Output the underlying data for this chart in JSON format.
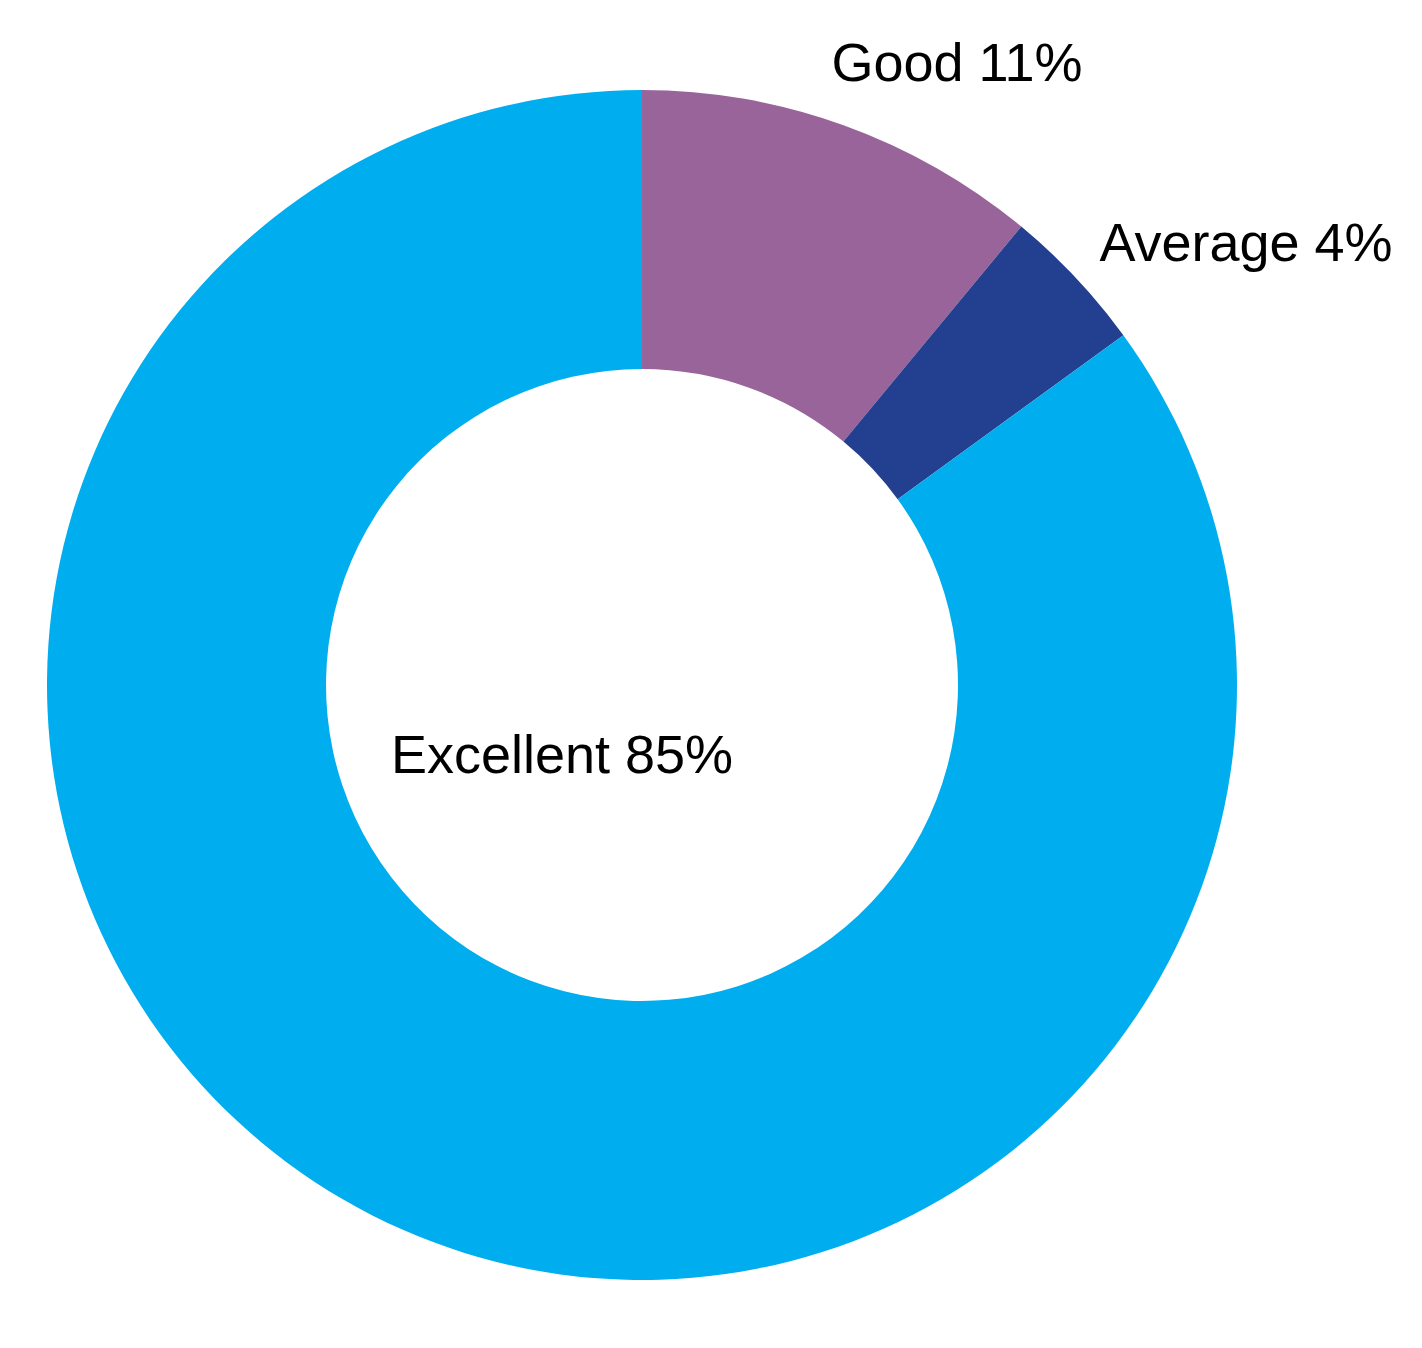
{
  "chart_data": {
    "type": "donut",
    "categories": [
      "Good",
      "Average",
      "Excellent"
    ],
    "values": [
      11,
      4,
      85
    ],
    "value_labels": [
      "11%",
      "4%",
      "85%"
    ],
    "colors": [
      "#98649a",
      "#233f8f",
      "#00aeef"
    ]
  }
}
